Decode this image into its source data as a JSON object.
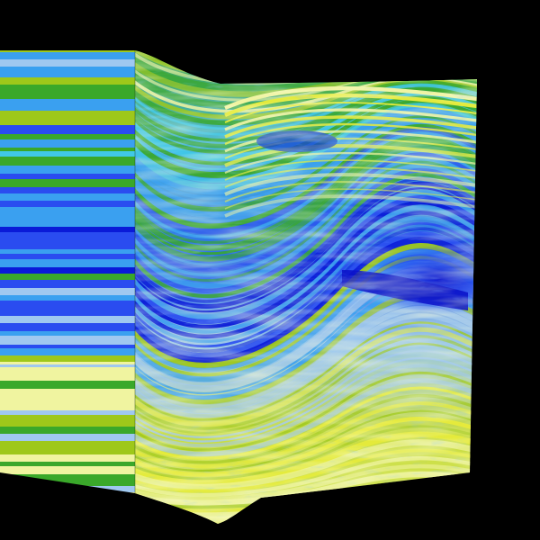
{
  "scene": {
    "background_color": "#000000",
    "palette": {
      "deep_blue": "#0a1ad8",
      "royal_blue": "#2a4cf0",
      "sky_blue": "#3aa0f0",
      "cyan": "#40c8e8",
      "pale_blue": "#a0c8f0",
      "green": "#3aa82a",
      "lime": "#9ec81a",
      "yellow": "#e8ec3a",
      "pale_yellow": "#f0f4a0"
    },
    "panels": [
      {
        "name": "left-panel",
        "style": "horizontal-bands"
      },
      {
        "name": "main-panel",
        "style": "folded-layers"
      }
    ]
  }
}
